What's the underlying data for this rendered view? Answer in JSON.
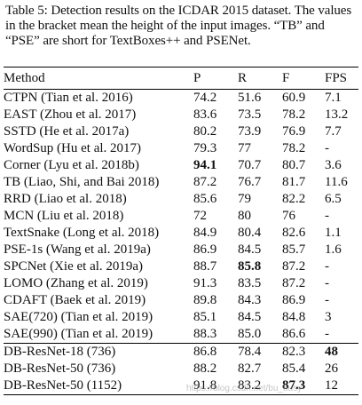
{
  "caption": "Table 5: Detection results on the ICDAR 2015 dataset. The values in the bracket mean the height of the input images. “TB” and “PSE” are short for TextBoxes++ and PSENet.",
  "headers": [
    "Method",
    "P",
    "R",
    "F",
    "FPS"
  ],
  "rows": [
    {
      "method": "CTPN (Tian et al. 2016)",
      "p": "74.2",
      "r": "51.6",
      "f": "60.9",
      "fps": "7.1",
      "bold": []
    },
    {
      "method": "EAST (Zhou et al. 2017)",
      "p": "83.6",
      "r": "73.5",
      "f": "78.2",
      "fps": "13.2",
      "bold": []
    },
    {
      "method": "SSTD (He et al. 2017a)",
      "p": "80.2",
      "r": "73.9",
      "f": "76.9",
      "fps": "7.7",
      "bold": []
    },
    {
      "method": "WordSup (Hu et al. 2017)",
      "p": "79.3",
      "r": "77",
      "f": "78.2",
      "fps": "-",
      "bold": []
    },
    {
      "method": "Corner (Lyu et al. 2018b)",
      "p": "94.1",
      "r": "70.7",
      "f": "80.7",
      "fps": "3.6",
      "bold": [
        "p"
      ]
    },
    {
      "method": "TB (Liao, Shi, and Bai 2018)",
      "p": "87.2",
      "r": "76.7",
      "f": "81.7",
      "fps": "11.6",
      "bold": []
    },
    {
      "method": "RRD (Liao et al. 2018)",
      "p": "85.6",
      "r": "79",
      "f": "82.2",
      "fps": "6.5",
      "bold": []
    },
    {
      "method": "MCN (Liu et al. 2018)",
      "p": "72",
      "r": "80",
      "f": "76",
      "fps": "-",
      "bold": []
    },
    {
      "method": "TextSnake (Long et al. 2018)",
      "p": "84.9",
      "r": "80.4",
      "f": "82.6",
      "fps": "1.1",
      "bold": []
    },
    {
      "method": "PSE-1s (Wang et al. 2019a)",
      "p": "86.9",
      "r": "84.5",
      "f": "85.7",
      "fps": "1.6",
      "bold": []
    },
    {
      "method": "SPCNet (Xie et al. 2019a)",
      "p": "88.7",
      "r": "85.8",
      "f": "87.2",
      "fps": "-",
      "bold": [
        "r"
      ]
    },
    {
      "method": "LOMO (Zhang et al. 2019)",
      "p": "91.3",
      "r": "83.5",
      "f": "87.2",
      "fps": "-",
      "bold": []
    },
    {
      "method": "CDAFT (Baek et al. 2019)",
      "p": "89.8",
      "r": "84.3",
      "f": "86.9",
      "fps": "-",
      "bold": []
    },
    {
      "method": "SAE(720) (Tian et al. 2019)",
      "p": "85.1",
      "r": "84.5",
      "f": "84.8",
      "fps": "3",
      "bold": []
    },
    {
      "method": "SAE(990) (Tian et al. 2019)",
      "p": "88.3",
      "r": "85.0",
      "f": "86.6",
      "fps": "-",
      "bold": []
    },
    {
      "method": "DB-ResNet-18 (736)",
      "p": "86.8",
      "r": "78.4",
      "f": "82.3",
      "fps": "48",
      "bold": [
        "fps"
      ]
    },
    {
      "method": "DB-ResNet-50 (736)",
      "p": "88.2",
      "r": "82.7",
      "f": "85.4",
      "fps": "26",
      "bold": []
    },
    {
      "method": "DB-ResNet-50 (1152)",
      "p": "91.8",
      "r": "83.2",
      "f": "87.3",
      "fps": "12",
      "bold": [
        "f"
      ]
    }
  ],
  "group_break_before": 15,
  "watermark": "https://blog.csdn.net/bu_busy"
}
